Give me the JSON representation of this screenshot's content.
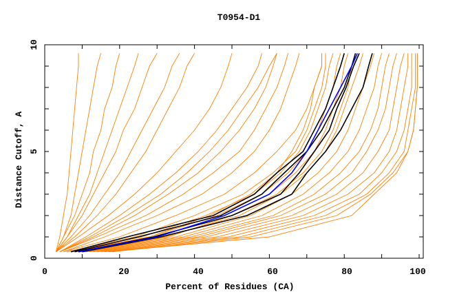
{
  "chart_data": {
    "type": "line",
    "title": "T0954-D1",
    "xlabel": "Percent of Residues (CA)",
    "ylabel": "Distance Cutoff, A",
    "xlim": [
      0,
      101.5
    ],
    "ylim": [
      0,
      10
    ],
    "xticks": [
      "0",
      "20",
      "40",
      "60",
      "80",
      "100"
    ],
    "yticks": [
      "0",
      "5",
      "10"
    ],
    "grid": false,
    "colors": {
      "model": "#ff8000",
      "highlight": "#000000",
      "selected": "#0000ff"
    },
    "cutoffs": [
      0.3,
      1,
      2,
      3,
      4,
      5,
      6,
      7,
      8,
      9,
      9.6
    ],
    "series_orange": [
      [
        3,
        4,
        5,
        6,
        6.5,
        7,
        7.5,
        8,
        8.5,
        9,
        9
      ],
      [
        3,
        5,
        7,
        8,
        9,
        10,
        11,
        12,
        13,
        14,
        15
      ],
      [
        3,
        5,
        8,
        10,
        12,
        13,
        15,
        16,
        18,
        19,
        20
      ],
      [
        3,
        6,
        9,
        12,
        14,
        16,
        18,
        20,
        22,
        24,
        25
      ],
      [
        3,
        6,
        10,
        13,
        16,
        19,
        21,
        24,
        26,
        28,
        30
      ],
      [
        3,
        7,
        12,
        16,
        20,
        23,
        26,
        29,
        32,
        34,
        36
      ],
      [
        3,
        8,
        14,
        19,
        23,
        27,
        30,
        33,
        36,
        38,
        40
      ],
      [
        3,
        9,
        17,
        24,
        30,
        35,
        40,
        44,
        47,
        49,
        50
      ],
      [
        4,
        11,
        20,
        28,
        35,
        41,
        46,
        50,
        54,
        57,
        58
      ],
      [
        4,
        13,
        24,
        33,
        41,
        47,
        52,
        56,
        59,
        61,
        62
      ],
      [
        4,
        14,
        27,
        37,
        45,
        52,
        56,
        59,
        62,
        64,
        65
      ],
      [
        5,
        16,
        30,
        42,
        50,
        56,
        60,
        63,
        65,
        67,
        68
      ],
      [
        4,
        12,
        22,
        31,
        38,
        44,
        49,
        53,
        57,
        60,
        62
      ],
      [
        5,
        20,
        35,
        48,
        56,
        62,
        67,
        70,
        72,
        74,
        74
      ],
      [
        6,
        24,
        40,
        53,
        61,
        67,
        70,
        72,
        74,
        75,
        75
      ],
      [
        6,
        26,
        43,
        56,
        63,
        68,
        71,
        73,
        75,
        76,
        77
      ],
      [
        7,
        28,
        46,
        58,
        65,
        70,
        73,
        75,
        77,
        78,
        79
      ],
      [
        8,
        30,
        48,
        60,
        67,
        72,
        75,
        77,
        79,
        80,
        81
      ],
      [
        9,
        32,
        52,
        63,
        70,
        75,
        78,
        80,
        82,
        84,
        85
      ],
      [
        10,
        35,
        55,
        66,
        73,
        78,
        81,
        83,
        85,
        87,
        88
      ],
      [
        11,
        37,
        58,
        69,
        76,
        81,
        84,
        86,
        88,
        89,
        90
      ],
      [
        12,
        39,
        61,
        72,
        79,
        84,
        87,
        89,
        90,
        91,
        92
      ],
      [
        13,
        41,
        63,
        75,
        82,
        86,
        89,
        91,
        92,
        93,
        94
      ],
      [
        14,
        43,
        66,
        78,
        85,
        89,
        92,
        93,
        94,
        95,
        96
      ],
      [
        15,
        46,
        69,
        81,
        88,
        92,
        94,
        95,
        96,
        97,
        97
      ],
      [
        16,
        49,
        72,
        84,
        90,
        94,
        96,
        97,
        98,
        98,
        98
      ],
      [
        17,
        52,
        75,
        86,
        92,
        96,
        97,
        98,
        99,
        99,
        99
      ],
      [
        18,
        55,
        78,
        87,
        93,
        97,
        98.5,
        99,
        99.5,
        99.5,
        99.5
      ],
      [
        17,
        60,
        82,
        88,
        94,
        97,
        98.5,
        99,
        99.5,
        99.5,
        99.5
      ],
      [
        8,
        28,
        44,
        55,
        62,
        66,
        69,
        71,
        72,
        74,
        74
      ],
      [
        10,
        33,
        50,
        62,
        69,
        74,
        77,
        79,
        81,
        82,
        83
      ]
    ],
    "series_black": [
      [
        7,
        22,
        45,
        56,
        62,
        69,
        72,
        75,
        77,
        79,
        80
      ],
      [
        8,
        25,
        47,
        58,
        64,
        70,
        74,
        77,
        80,
        82,
        83
      ],
      [
        9,
        29,
        50,
        63,
        68,
        72,
        76,
        78,
        80.5,
        82.5,
        84
      ],
      [
        10,
        31,
        54,
        66,
        70,
        75,
        79,
        82,
        85,
        86.5,
        87.5
      ]
    ],
    "series_blue": [
      9,
      30,
      48,
      60,
      66,
      70,
      73,
      76,
      79,
      82,
      83.5
    ]
  }
}
